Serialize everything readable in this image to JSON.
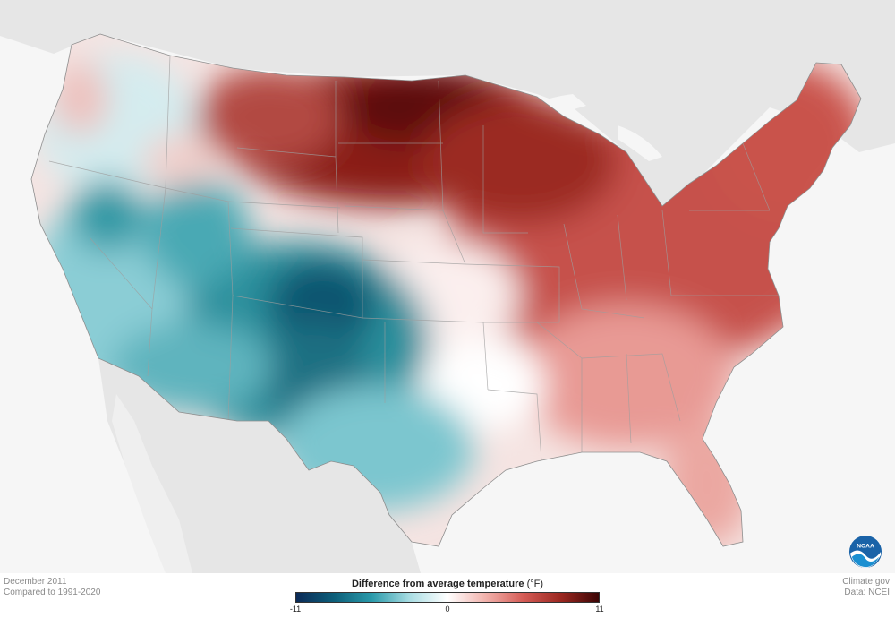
{
  "footer": {
    "date": "December 2011",
    "comparison": "Compared to 1991-2020",
    "credit_site": "Climate.gov",
    "credit_data": "Data: NCEI"
  },
  "legend": {
    "title": "Difference from average temperature",
    "units": "(°F)",
    "min_label": "-11",
    "mid_label": "0",
    "max_label": "11",
    "colors": [
      "#0b2a57",
      "#0d5f7a",
      "#2a9aaa",
      "#a9dde3",
      "#ffffff",
      "#f2b3ad",
      "#d55c56",
      "#9b2720",
      "#3c0505"
    ]
  },
  "logo": {
    "text": "NOAA"
  },
  "map": {
    "title": "",
    "region": "Contiguous United States",
    "land_color": "#e6e6e6",
    "water_color": "#f6f6f6"
  }
}
